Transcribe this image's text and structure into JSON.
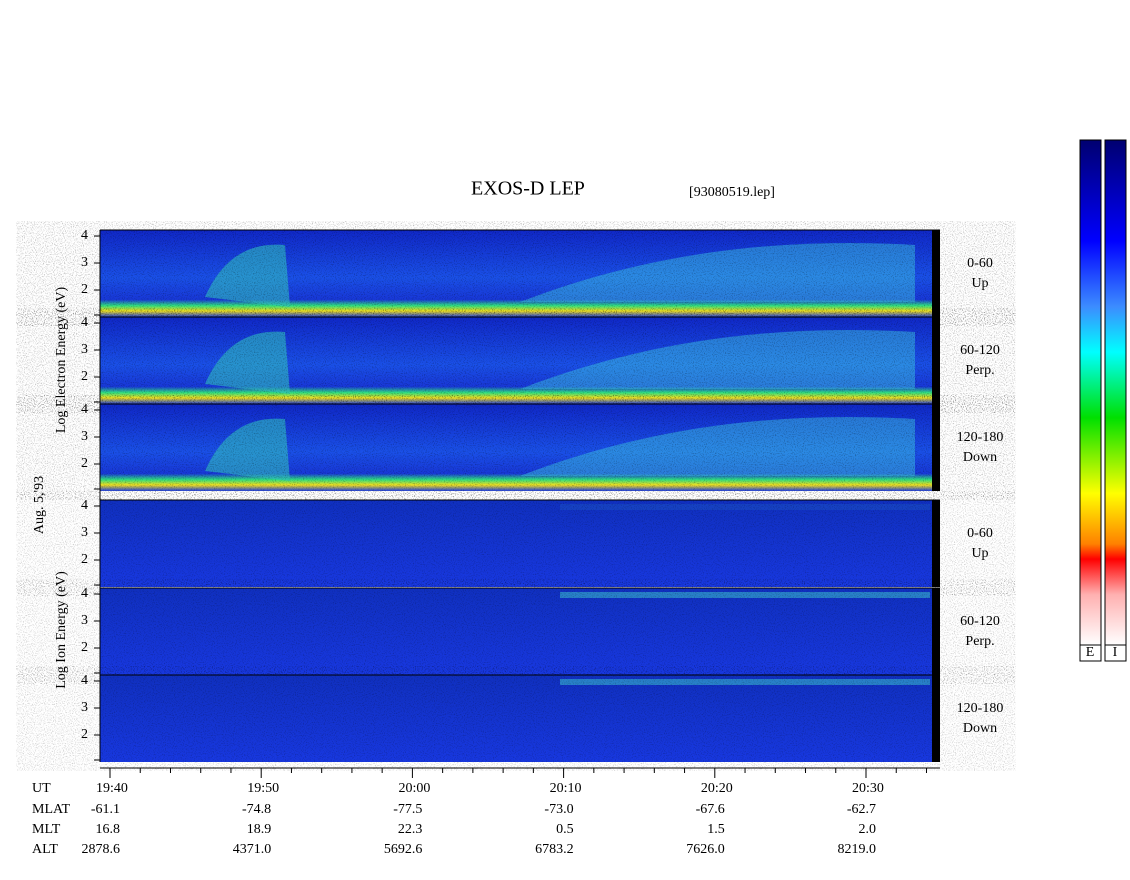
{
  "title": "EXOS-D LEP",
  "file": "[93080519.lep]",
  "left_labels": {
    "electron": "Log Electron Energy (eV)",
    "date": "Aug. 5,'93",
    "ion": "Log Ion Energy (eV)"
  },
  "yticks": [
    2,
    3,
    4
  ],
  "panels": [
    {
      "range": "0-60",
      "direction": "Up"
    },
    {
      "range": "60-120",
      "direction": "Perp."
    },
    {
      "range": "120-180",
      "direction": "Down"
    },
    {
      "range": "0-60",
      "direction": "Up"
    },
    {
      "range": "60-120",
      "direction": "Perp."
    },
    {
      "range": "120-180",
      "direction": "Down"
    }
  ],
  "axis_rows": [
    {
      "label": "UT",
      "values": [
        "19:40",
        "19:50",
        "20:00",
        "20:10",
        "20:20",
        "20:30"
      ]
    },
    {
      "label": "MLAT",
      "values": [
        "-61.1",
        "-74.8",
        "-77.5",
        "-73.0",
        "-67.6",
        "-62.7"
      ]
    },
    {
      "label": "MLT",
      "values": [
        "16.8",
        "18.9",
        "22.3",
        "0.5",
        "1.5",
        "2.0"
      ]
    },
    {
      "label": "ALT",
      "values": [
        "2878.6",
        "4371.0",
        "5692.6",
        "6783.2",
        "7626.0",
        "8219.0"
      ]
    }
  ],
  "colorbar_labels": [
    "E",
    "I"
  ]
}
